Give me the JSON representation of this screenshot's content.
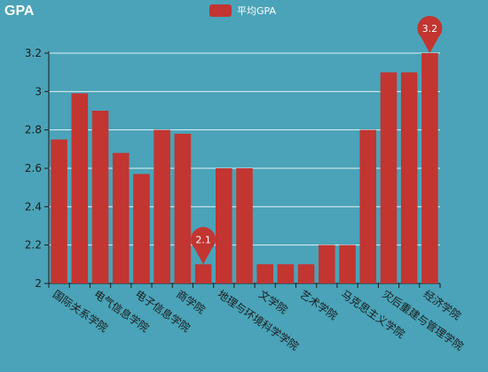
{
  "chart_data": {
    "type": "bar",
    "title": "GPA",
    "legend": [
      "平均GPA"
    ],
    "series": [
      {
        "name": "平均GPA",
        "values": [
          2.75,
          2.99,
          2.9,
          2.68,
          2.57,
          2.8,
          2.78,
          2.1,
          2.6,
          2.6,
          2.1,
          2.1,
          2.1,
          2.2,
          2.2,
          2.8,
          3.1,
          3.1,
          3.2
        ]
      }
    ],
    "categories": [
      "国际关系学院",
      "",
      "电气信息学院",
      "",
      "电子信息学院",
      "",
      "商学院",
      "",
      "地理与环境科学学院",
      "",
      "文学院",
      "",
      "艺术学院",
      "",
      "马克思主义学院",
      "",
      "灾后重建与管理学院",
      "",
      "经济学院"
    ],
    "ylim": [
      2.0,
      3.2
    ],
    "yticks": [
      2.0,
      2.2,
      2.4,
      2.6,
      2.8,
      3.0,
      3.2
    ],
    "ytick_labels": [
      "2",
      "2.2",
      "2.4",
      "2.6",
      "2.8",
      "3",
      "3.2"
    ],
    "markers": [
      {
        "label": "2.1",
        "index": 7
      },
      {
        "label": "3.2",
        "index": 18
      }
    ],
    "grid": true,
    "legend_position": "top-center",
    "colors": {
      "bar": "#c23531",
      "background": "#4aa3b8",
      "grid": "#ffffff",
      "axis": "#1a1a1a"
    }
  }
}
